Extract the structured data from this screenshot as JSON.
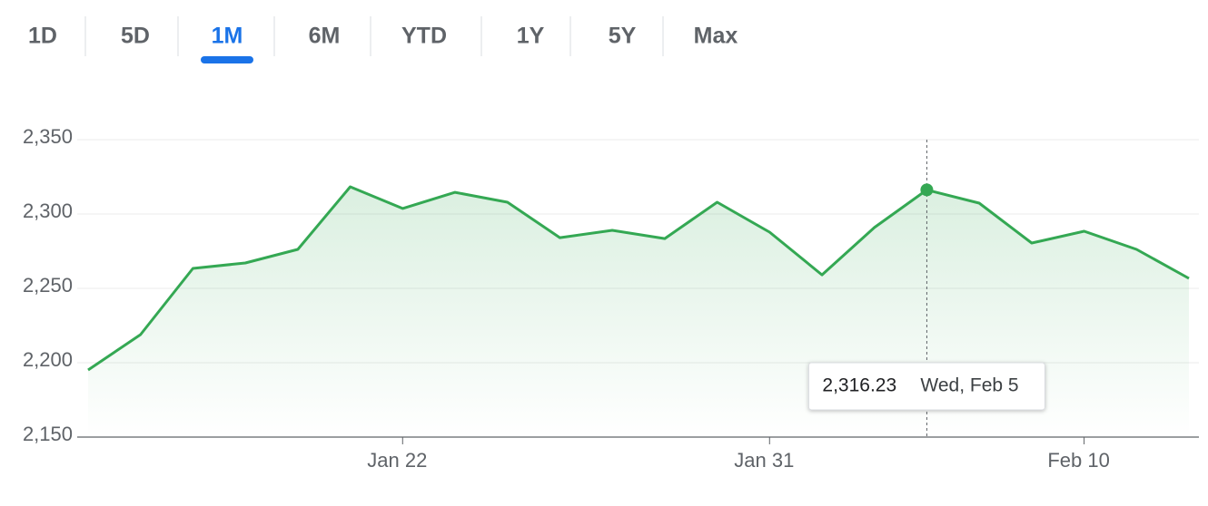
{
  "tabs": {
    "items": [
      "1D",
      "5D",
      "1M",
      "6M",
      "YTD",
      "1Y",
      "5Y",
      "Max"
    ],
    "active": 2
  },
  "chart_data": {
    "type": "area-line",
    "color": "#34a853",
    "categories": [
      null,
      null,
      null,
      null,
      null,
      null,
      "Jan 22",
      null,
      null,
      null,
      null,
      null,
      null,
      "Jan 31",
      null,
      null,
      null,
      null,
      null,
      "Feb 10",
      null,
      null
    ],
    "values": [
      2195.1,
      2218.9,
      2263.4,
      2267.1,
      2276.2,
      2318.3,
      2303.7,
      2314.6,
      2307.9,
      2284.1,
      2289.0,
      2283.5,
      2307.9,
      2287.8,
      2259.1,
      2290.9,
      2316.23,
      2307.3,
      2280.5,
      2288.4,
      2276.2,
      2256.7
    ],
    "value_labels": [
      null,
      null,
      null,
      null,
      null,
      null,
      null,
      null,
      null,
      null,
      null,
      null,
      null,
      null,
      null,
      null,
      "2,316.23",
      null,
      null,
      null,
      null,
      null
    ],
    "ylim": [
      2150,
      2350
    ],
    "yticks": [
      {
        "value": 2150,
        "label": "2,150"
      },
      {
        "value": 2200,
        "label": "2,200"
      },
      {
        "value": 2250,
        "label": "2,250"
      },
      {
        "value": 2300,
        "label": "2,300"
      },
      {
        "value": 2350,
        "label": "2,350"
      }
    ],
    "grid": true,
    "tooltip": {
      "index": 16,
      "date": "Wed, Feb 5"
    }
  }
}
